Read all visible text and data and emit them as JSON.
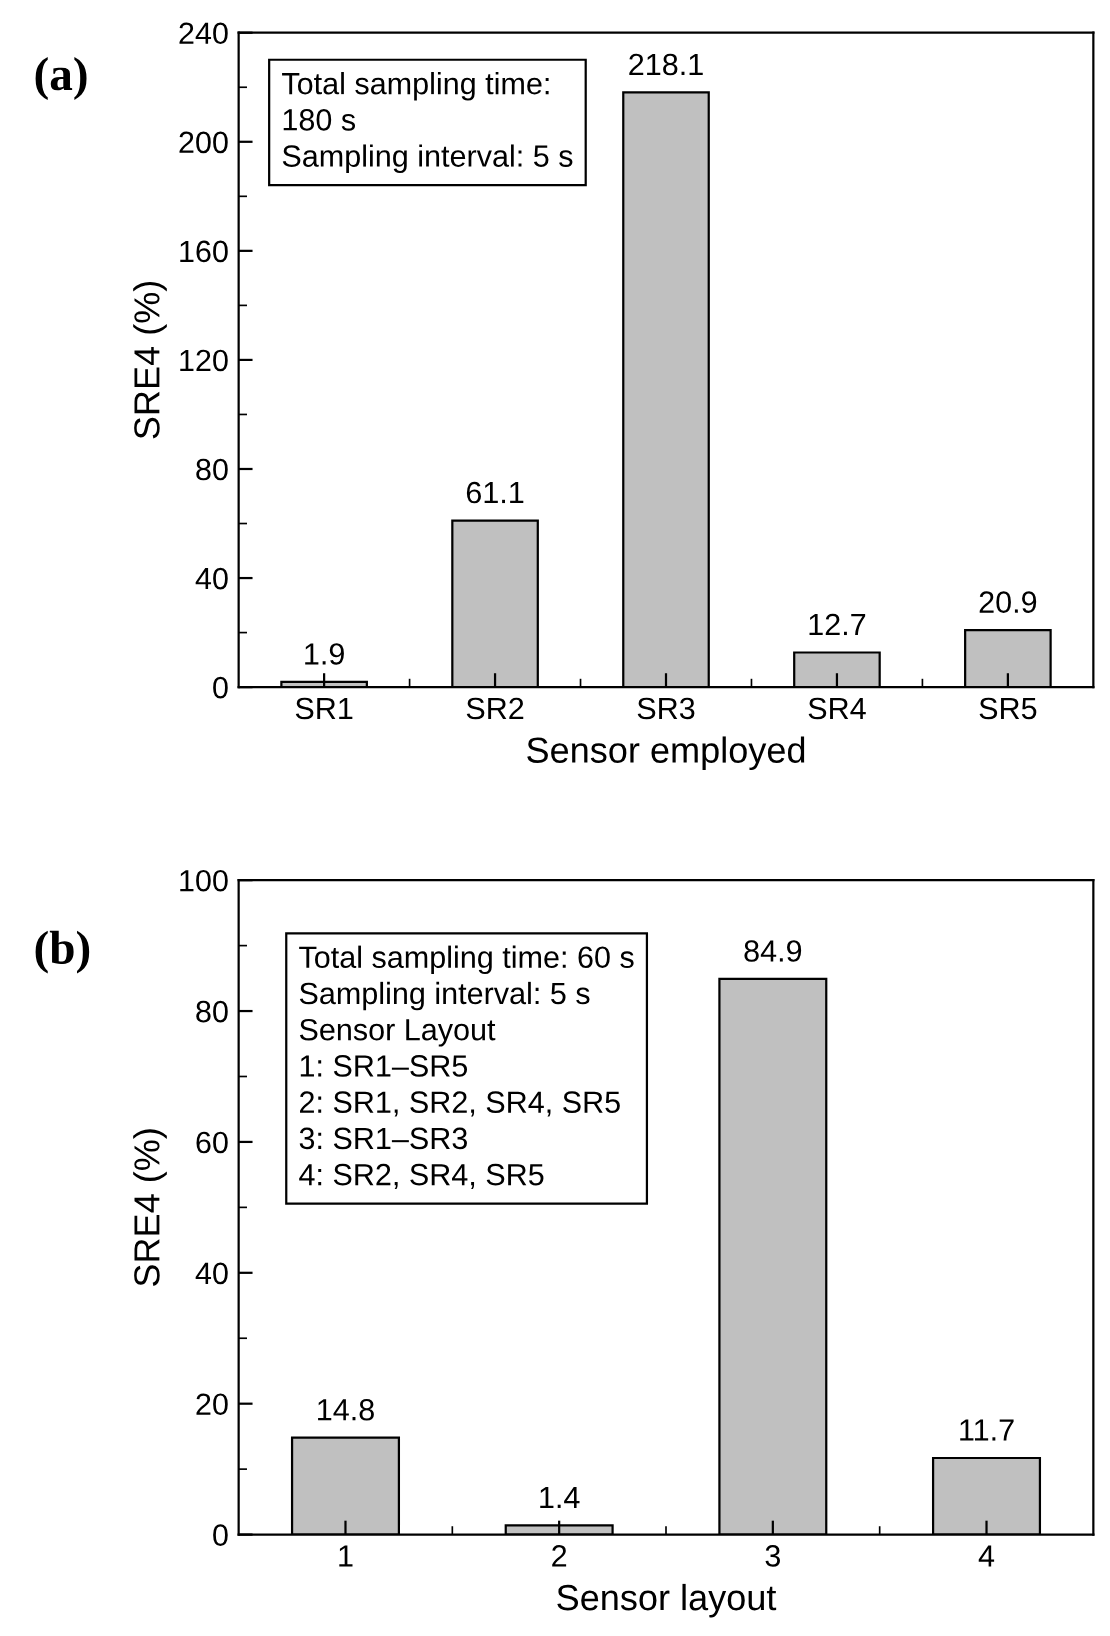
{
  "chart_data": [
    {
      "type": "bar",
      "title": "(a)",
      "xlabel": "Sensor employed",
      "ylabel": "SRE4 (%)",
      "categories": [
        "SR1",
        "SR2",
        "SR3",
        "SR4",
        "SR5"
      ],
      "values": [
        1.9,
        61.1,
        218.1,
        12.7,
        20.9
      ],
      "color": "#c0c0c0",
      "ylim": [
        0,
        240
      ],
      "yticks": [
        0,
        40,
        80,
        120,
        160,
        200,
        240
      ],
      "data_labels": true,
      "grid": false,
      "legend": false,
      "annotations": [
        "Total sampling time:\n180 s",
        "Sampling interval: 5 s"
      ]
    },
    {
      "type": "bar",
      "title": "(b)",
      "xlabel": "Sensor layout",
      "ylabel": "SRE4 (%)",
      "categories": [
        "1",
        "2",
        "3",
        "4"
      ],
      "values": [
        14.8,
        1.4,
        84.9,
        11.7
      ],
      "color": "#c0c0c0",
      "ylim": [
        0,
        100
      ],
      "yticks": [
        0,
        20,
        40,
        60,
        80,
        100
      ],
      "data_labels": true,
      "grid": false,
      "legend": false,
      "annotations": [
        "Total sampling time: 60 s",
        "Sampling interval: 5 s",
        "Sensor Layout",
        "1: SR1–SR5",
        "2: SR1, SR2, SR4, SR5",
        "3: SR1–SR3",
        "4: SR2, SR4, SR5"
      ]
    }
  ]
}
